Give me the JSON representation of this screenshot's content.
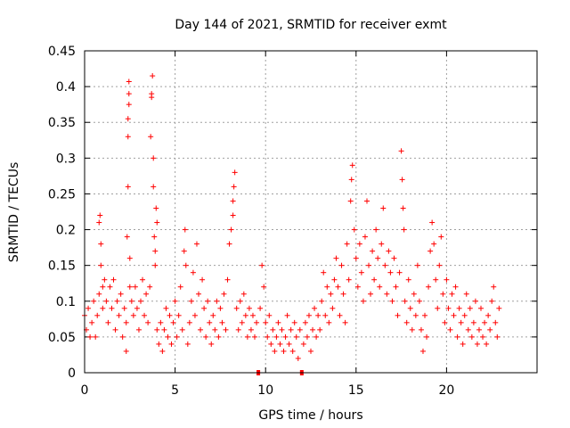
{
  "chart_data": {
    "type": "scatter",
    "title": "Day 144 of 2021, SRMTID for receiver exmt",
    "xlabel": "GPS time / hours",
    "ylabel": "SRMTID / TECUs",
    "xlim": [
      0,
      25
    ],
    "ylim": [
      0,
      0.45
    ],
    "grid": true,
    "x_ticks": [
      0,
      5,
      10,
      15,
      20
    ],
    "x_tick_labels": [
      "0",
      "5",
      "10",
      "15",
      "20"
    ],
    "y_ticks": [
      0,
      0.05,
      0.1,
      0.15,
      0.2,
      0.25,
      0.3,
      0.35,
      0.4,
      0.45
    ],
    "y_tick_labels": [
      "0",
      "0.05",
      "0.1",
      "0.15",
      "0.2",
      "0.25",
      "0.3",
      "0.35",
      "0.4",
      "0.45"
    ],
    "marker": "+",
    "series_color": "#ff0000",
    "data_gaps_at_x": [
      9.6,
      12.0
    ],
    "series": [
      {
        "name": "SRMTID",
        "points": [
          [
            0.0,
            0.08
          ],
          [
            0.1,
            0.06
          ],
          [
            0.2,
            0.09
          ],
          [
            0.3,
            0.05
          ],
          [
            0.4,
            0.07
          ],
          [
            0.5,
            0.1
          ],
          [
            0.6,
            0.05
          ],
          [
            0.7,
            0.08
          ],
          [
            0.8,
            0.11
          ],
          [
            0.8,
            0.21
          ],
          [
            0.85,
            0.22
          ],
          [
            0.9,
            0.18
          ],
          [
            0.9,
            0.15
          ],
          [
            1.0,
            0.12
          ],
          [
            1.0,
            0.09
          ],
          [
            1.1,
            0.13
          ],
          [
            1.2,
            0.1
          ],
          [
            1.3,
            0.07
          ],
          [
            1.4,
            0.12
          ],
          [
            1.5,
            0.09
          ],
          [
            1.6,
            0.13
          ],
          [
            1.7,
            0.06
          ],
          [
            1.8,
            0.1
          ],
          [
            1.9,
            0.08
          ],
          [
            2.0,
            0.11
          ],
          [
            2.1,
            0.05
          ],
          [
            2.2,
            0.09
          ],
          [
            2.3,
            0.03
          ],
          [
            2.3,
            0.07
          ],
          [
            2.35,
            0.19
          ],
          [
            2.4,
            0.26
          ],
          [
            2.4,
            0.33
          ],
          [
            2.4,
            0.355
          ],
          [
            2.45,
            0.375
          ],
          [
            2.45,
            0.39
          ],
          [
            2.45,
            0.407
          ],
          [
            2.5,
            0.16
          ],
          [
            2.5,
            0.12
          ],
          [
            2.6,
            0.1
          ],
          [
            2.7,
            0.08
          ],
          [
            2.8,
            0.12
          ],
          [
            2.9,
            0.09
          ],
          [
            3.0,
            0.06
          ],
          [
            3.1,
            0.1
          ],
          [
            3.2,
            0.13
          ],
          [
            3.3,
            0.08
          ],
          [
            3.4,
            0.11
          ],
          [
            3.5,
            0.07
          ],
          [
            3.6,
            0.12
          ],
          [
            3.65,
            0.33
          ],
          [
            3.7,
            0.385
          ],
          [
            3.7,
            0.39
          ],
          [
            3.75,
            0.415
          ],
          [
            3.8,
            0.3
          ],
          [
            3.8,
            0.26
          ],
          [
            3.85,
            0.19
          ],
          [
            3.9,
            0.17
          ],
          [
            3.9,
            0.15
          ],
          [
            3.95,
            0.23
          ],
          [
            4.0,
            0.21
          ],
          [
            4.0,
            0.06
          ],
          [
            4.1,
            0.04
          ],
          [
            4.2,
            0.07
          ],
          [
            4.3,
            0.03
          ],
          [
            4.4,
            0.06
          ],
          [
            4.5,
            0.09
          ],
          [
            4.6,
            0.05
          ],
          [
            4.7,
            0.08
          ],
          [
            4.8,
            0.04
          ],
          [
            4.9,
            0.07
          ],
          [
            5.0,
            0.1
          ],
          [
            5.1,
            0.05
          ],
          [
            5.2,
            0.08
          ],
          [
            5.3,
            0.12
          ],
          [
            5.4,
            0.06
          ],
          [
            5.5,
            0.17
          ],
          [
            5.55,
            0.2
          ],
          [
            5.6,
            0.15
          ],
          [
            5.7,
            0.04
          ],
          [
            5.8,
            0.07
          ],
          [
            5.9,
            0.1
          ],
          [
            6.0,
            0.14
          ],
          [
            6.1,
            0.08
          ],
          [
            6.2,
            0.18
          ],
          [
            6.3,
            0.11
          ],
          [
            6.4,
            0.06
          ],
          [
            6.5,
            0.13
          ],
          [
            6.6,
            0.09
          ],
          [
            6.7,
            0.05
          ],
          [
            6.8,
            0.1
          ],
          [
            6.9,
            0.07
          ],
          [
            7.0,
            0.04
          ],
          [
            7.1,
            0.08
          ],
          [
            7.2,
            0.06
          ],
          [
            7.3,
            0.1
          ],
          [
            7.4,
            0.05
          ],
          [
            7.5,
            0.09
          ],
          [
            7.6,
            0.07
          ],
          [
            7.7,
            0.11
          ],
          [
            7.8,
            0.06
          ],
          [
            7.9,
            0.13
          ],
          [
            8.0,
            0.18
          ],
          [
            8.1,
            0.2
          ],
          [
            8.2,
            0.22
          ],
          [
            8.2,
            0.24
          ],
          [
            8.25,
            0.26
          ],
          [
            8.3,
            0.28
          ],
          [
            8.4,
            0.09
          ],
          [
            8.5,
            0.06
          ],
          [
            8.6,
            0.1
          ],
          [
            8.7,
            0.07
          ],
          [
            8.8,
            0.11
          ],
          [
            8.9,
            0.08
          ],
          [
            9.0,
            0.05
          ],
          [
            9.1,
            0.09
          ],
          [
            9.2,
            0.06
          ],
          [
            9.3,
            0.08
          ],
          [
            9.4,
            0.05
          ],
          [
            9.5,
            0.07
          ],
          [
            9.6,
            0.0
          ],
          [
            9.7,
            0.09
          ],
          [
            9.8,
            0.15
          ],
          [
            9.9,
            0.12
          ],
          [
            10.0,
            0.07
          ],
          [
            10.1,
            0.05
          ],
          [
            10.2,
            0.08
          ],
          [
            10.3,
            0.04
          ],
          [
            10.4,
            0.06
          ],
          [
            10.5,
            0.03
          ],
          [
            10.6,
            0.05
          ],
          [
            10.7,
            0.07
          ],
          [
            10.8,
            0.04
          ],
          [
            10.9,
            0.06
          ],
          [
            11.0,
            0.03
          ],
          [
            11.1,
            0.05
          ],
          [
            11.2,
            0.08
          ],
          [
            11.3,
            0.04
          ],
          [
            11.4,
            0.06
          ],
          [
            11.5,
            0.03
          ],
          [
            11.6,
            0.07
          ],
          [
            11.7,
            0.05
          ],
          [
            11.8,
            0.02
          ],
          [
            11.9,
            0.06
          ],
          [
            12.0,
            0.0
          ],
          [
            12.1,
            0.04
          ],
          [
            12.2,
            0.07
          ],
          [
            12.3,
            0.05
          ],
          [
            12.4,
            0.08
          ],
          [
            12.5,
            0.03
          ],
          [
            12.6,
            0.06
          ],
          [
            12.7,
            0.09
          ],
          [
            12.8,
            0.05
          ],
          [
            12.9,
            0.08
          ],
          [
            13.0,
            0.06
          ],
          [
            13.1,
            0.1
          ],
          [
            13.2,
            0.14
          ],
          [
            13.3,
            0.08
          ],
          [
            13.4,
            0.12
          ],
          [
            13.5,
            0.07
          ],
          [
            13.6,
            0.11
          ],
          [
            13.7,
            0.09
          ],
          [
            13.8,
            0.13
          ],
          [
            13.9,
            0.16
          ],
          [
            14.0,
            0.12
          ],
          [
            14.1,
            0.08
          ],
          [
            14.2,
            0.15
          ],
          [
            14.3,
            0.11
          ],
          [
            14.4,
            0.07
          ],
          [
            14.5,
            0.18
          ],
          [
            14.6,
            0.13
          ],
          [
            14.7,
            0.24
          ],
          [
            14.75,
            0.27
          ],
          [
            14.8,
            0.29
          ],
          [
            14.9,
            0.2
          ],
          [
            15.0,
            0.16
          ],
          [
            15.1,
            0.12
          ],
          [
            15.2,
            0.18
          ],
          [
            15.3,
            0.14
          ],
          [
            15.4,
            0.1
          ],
          [
            15.5,
            0.19
          ],
          [
            15.6,
            0.24
          ],
          [
            15.7,
            0.15
          ],
          [
            15.8,
            0.11
          ],
          [
            15.9,
            0.17
          ],
          [
            16.0,
            0.13
          ],
          [
            16.1,
            0.2
          ],
          [
            16.2,
            0.16
          ],
          [
            16.3,
            0.12
          ],
          [
            16.4,
            0.18
          ],
          [
            16.5,
            0.23
          ],
          [
            16.6,
            0.15
          ],
          [
            16.7,
            0.11
          ],
          [
            16.8,
            0.17
          ],
          [
            16.9,
            0.14
          ],
          [
            17.0,
            0.1
          ],
          [
            17.1,
            0.16
          ],
          [
            17.2,
            0.12
          ],
          [
            17.3,
            0.08
          ],
          [
            17.4,
            0.14
          ],
          [
            17.5,
            0.31
          ],
          [
            17.55,
            0.27
          ],
          [
            17.6,
            0.23
          ],
          [
            17.65,
            0.2
          ],
          [
            17.7,
            0.1
          ],
          [
            17.8,
            0.07
          ],
          [
            17.9,
            0.13
          ],
          [
            18.0,
            0.09
          ],
          [
            18.1,
            0.06
          ],
          [
            18.2,
            0.11
          ],
          [
            18.3,
            0.08
          ],
          [
            18.4,
            0.15
          ],
          [
            18.5,
            0.1
          ],
          [
            18.6,
            0.06
          ],
          [
            18.7,
            0.03
          ],
          [
            18.8,
            0.08
          ],
          [
            18.9,
            0.05
          ],
          [
            19.0,
            0.12
          ],
          [
            19.1,
            0.17
          ],
          [
            19.2,
            0.21
          ],
          [
            19.3,
            0.18
          ],
          [
            19.4,
            0.13
          ],
          [
            19.5,
            0.09
          ],
          [
            19.6,
            0.15
          ],
          [
            19.7,
            0.19
          ],
          [
            19.8,
            0.11
          ],
          [
            19.9,
            0.07
          ],
          [
            20.0,
            0.13
          ],
          [
            20.1,
            0.09
          ],
          [
            20.2,
            0.06
          ],
          [
            20.3,
            0.11
          ],
          [
            20.4,
            0.08
          ],
          [
            20.5,
            0.12
          ],
          [
            20.6,
            0.05
          ],
          [
            20.7,
            0.09
          ],
          [
            20.8,
            0.07
          ],
          [
            20.9,
            0.04
          ],
          [
            21.0,
            0.08
          ],
          [
            21.1,
            0.11
          ],
          [
            21.2,
            0.06
          ],
          [
            21.3,
            0.09
          ],
          [
            21.4,
            0.05
          ],
          [
            21.5,
            0.07
          ],
          [
            21.6,
            0.1
          ],
          [
            21.7,
            0.04
          ],
          [
            21.8,
            0.06
          ],
          [
            21.9,
            0.09
          ],
          [
            22.0,
            0.05
          ],
          [
            22.1,
            0.07
          ],
          [
            22.2,
            0.04
          ],
          [
            22.3,
            0.08
          ],
          [
            22.4,
            0.06
          ],
          [
            22.5,
            0.1
          ],
          [
            22.6,
            0.12
          ],
          [
            22.7,
            0.07
          ],
          [
            22.8,
            0.05
          ],
          [
            22.9,
            0.09
          ]
        ]
      }
    ]
  }
}
